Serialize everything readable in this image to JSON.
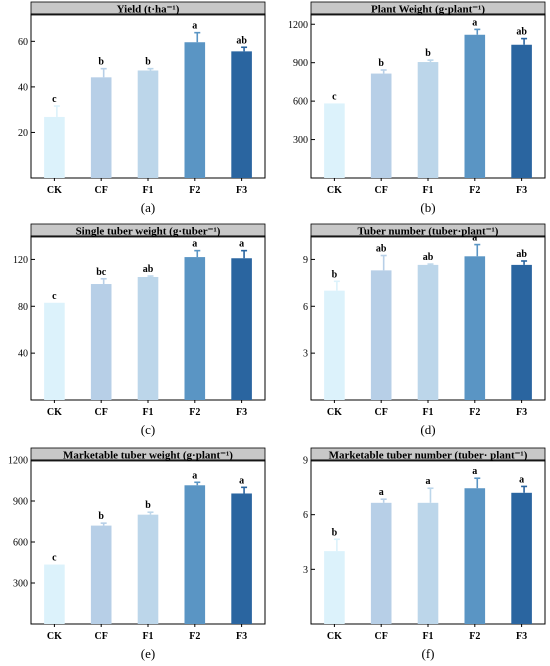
{
  "chart_data": [
    {
      "type": "bar",
      "panel_label": "(a)",
      "title": "Yield (t·ha⁻¹)",
      "categories": [
        "CK",
        "CF",
        "F1",
        "F2",
        "F3"
      ],
      "values": [
        26.8,
        44.2,
        47.2,
        59.6,
        55.6
      ],
      "errors": [
        4.8,
        3.8,
        0.8,
        4.2,
        1.8
      ],
      "letters": [
        "c",
        "b",
        "b",
        "a",
        "ab"
      ],
      "yticks": [
        20,
        40,
        60
      ],
      "ylim": [
        0,
        72
      ]
    },
    {
      "type": "bar",
      "panel_label": "(b)",
      "title": "Plant Weight (g·plant⁻¹)",
      "categories": [
        "CK",
        "CF",
        "F1",
        "F2",
        "F3"
      ],
      "values": [
        582,
        815,
        905,
        1118,
        1040
      ],
      "errors": [
        0,
        28,
        15,
        42,
        48
      ],
      "letters": [
        "c",
        "b",
        "b",
        "a",
        "ab"
      ],
      "yticks": [
        300,
        600,
        900,
        1200
      ],
      "ylim": [
        0,
        1280
      ]
    },
    {
      "type": "bar",
      "panel_label": "(c)",
      "title": "Single tuber weight (g·tuber⁻¹)",
      "categories": [
        "CK",
        "CF",
        "F1",
        "F2",
        "F3"
      ],
      "values": [
        83,
        99,
        105,
        122,
        121
      ],
      "errors": [
        0,
        4.5,
        0.8,
        5.5,
        6.5
      ],
      "letters": [
        "c",
        "bc",
        "ab",
        "a",
        "a"
      ],
      "yticks": [
        40,
        80,
        120
      ],
      "ylim": [
        0,
        140
      ]
    },
    {
      "type": "bar",
      "panel_label": "(d)",
      "title": "Tuber number (tuber·plant⁻¹)",
      "categories": [
        "CK",
        "CF",
        "F1",
        "F2",
        "F3"
      ],
      "values": [
        7.0,
        8.3,
        8.65,
        9.2,
        8.65
      ],
      "errors": [
        0.6,
        0.95,
        0.05,
        0.75,
        0.25
      ],
      "letters": [
        "b",
        "ab",
        "ab",
        "a",
        "ab"
      ],
      "yticks": [
        3,
        6,
        9
      ],
      "ylim": [
        0,
        10.5
      ]
    },
    {
      "type": "bar",
      "panel_label": "(e)",
      "title": "Marketable tuber weight (g·plant⁻¹)",
      "categories": [
        "CK",
        "CF",
        "F1",
        "F2",
        "F3"
      ],
      "values": [
        435,
        720,
        800,
        1015,
        955
      ],
      "errors": [
        0,
        18,
        18,
        22,
        45
      ],
      "letters": [
        "c",
        "b",
        "b",
        "a",
        "a"
      ],
      "yticks": [
        300,
        600,
        900,
        1200
      ],
      "ylim": [
        0,
        1200
      ]
    },
    {
      "type": "bar",
      "panel_label": "(f)",
      "title": "Marketable tuber number (tuber· plant⁻¹)",
      "categories": [
        "CK",
        "CF",
        "F1",
        "F2",
        "F3"
      ],
      "values": [
        4.0,
        6.65,
        6.65,
        7.45,
        7.2
      ],
      "errors": [
        0.65,
        0.2,
        0.8,
        0.55,
        0.35
      ],
      "letters": [
        "b",
        "a",
        "a",
        "a",
        "a"
      ],
      "yticks": [
        3,
        6,
        9
      ],
      "ylim": [
        0,
        9
      ]
    }
  ],
  "colors": [
    "#dcf2fb",
    "#b7cfe7",
    "#bcd6ea",
    "#5a95c4",
    "#2a65a0"
  ],
  "title_bar_color": "#c8c8c8"
}
